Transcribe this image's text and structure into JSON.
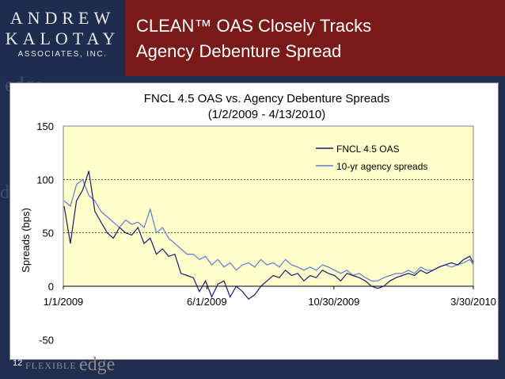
{
  "logo": {
    "line1": "ANDREW",
    "line2": "KALOTAY",
    "line3": "ASSOCIATES, INC."
  },
  "slide": {
    "title_line1": "CLEAN™ OAS Closely Tracks",
    "title_line2": "Agency Debenture Spread",
    "page_number": "12",
    "footer_word": "edge",
    "footer_small": "FLEXIBLE"
  },
  "colors": {
    "plot_bg": "#ffffcc",
    "oas": "#1a1a6e",
    "spread": "#5a7bd8"
  },
  "chart_data": {
    "type": "line",
    "title": "FNCL 4.5 OAS vs. Agency Debenture Spreads",
    "subtitle": "(1/2/2009  - 4/13/2010)",
    "ylabel": "Spreads (bps)",
    "ylim": [
      -50,
      150
    ],
    "yticks": [
      "-50",
      "0",
      "50",
      "100",
      "150"
    ],
    "xticks": [
      "1/1/2009",
      "6/1/2009",
      "10/30/2009",
      "3/30/2010"
    ],
    "xlim": [
      "2009-01-01",
      "2010-04-13"
    ],
    "grid": "horizontal",
    "legend": "top-right",
    "series": [
      {
        "name": "FNCL 4.5 OAS",
        "x": [
          "2009-01-02",
          "2009-01-09",
          "2009-01-16",
          "2009-01-23",
          "2009-01-30",
          "2009-02-06",
          "2009-02-13",
          "2009-02-20",
          "2009-02-27",
          "2009-03-06",
          "2009-03-13",
          "2009-03-20",
          "2009-03-27",
          "2009-04-03",
          "2009-04-10",
          "2009-04-17",
          "2009-04-24",
          "2009-05-01",
          "2009-05-08",
          "2009-05-15",
          "2009-05-22",
          "2009-05-29",
          "2009-06-05",
          "2009-06-12",
          "2009-06-19",
          "2009-06-26",
          "2009-07-03",
          "2009-07-10",
          "2009-07-17",
          "2009-07-24",
          "2009-07-31",
          "2009-08-07",
          "2009-08-14",
          "2009-08-21",
          "2009-08-28",
          "2009-09-04",
          "2009-09-11",
          "2009-09-18",
          "2009-09-25",
          "2009-10-02",
          "2009-10-09",
          "2009-10-16",
          "2009-10-23",
          "2009-10-30",
          "2009-11-06",
          "2009-11-13",
          "2009-11-20",
          "2009-11-27",
          "2009-12-04",
          "2009-12-11",
          "2009-12-18",
          "2009-12-25",
          "2010-01-01",
          "2010-01-08",
          "2010-01-15",
          "2010-01-22",
          "2010-01-29",
          "2010-02-05",
          "2010-02-12",
          "2010-02-19",
          "2010-02-26",
          "2010-03-05",
          "2010-03-12",
          "2010-03-19",
          "2010-03-26",
          "2010-04-02",
          "2010-04-09",
          "2010-04-13"
        ],
        "values": [
          75,
          40,
          80,
          90,
          108,
          70,
          60,
          50,
          45,
          55,
          50,
          48,
          55,
          40,
          45,
          30,
          35,
          28,
          30,
          12,
          10,
          8,
          -5,
          5,
          -10,
          2,
          5,
          -10,
          0,
          -5,
          -12,
          -8,
          0,
          5,
          10,
          8,
          15,
          10,
          12,
          5,
          10,
          8,
          15,
          12,
          10,
          5,
          12,
          10,
          8,
          5,
          0,
          -2,
          0,
          5,
          8,
          10,
          12,
          10,
          15,
          12,
          15,
          18,
          20,
          22,
          20,
          25,
          28,
          22
        ]
      },
      {
        "name": "10-yr agency spreads",
        "x": [
          "2009-01-02",
          "2009-01-09",
          "2009-01-16",
          "2009-01-23",
          "2009-01-30",
          "2009-02-06",
          "2009-02-13",
          "2009-02-20",
          "2009-02-27",
          "2009-03-06",
          "2009-03-13",
          "2009-03-20",
          "2009-03-27",
          "2009-04-03",
          "2009-04-10",
          "2009-04-17",
          "2009-04-24",
          "2009-05-01",
          "2009-05-08",
          "2009-05-15",
          "2009-05-22",
          "2009-05-29",
          "2009-06-05",
          "2009-06-12",
          "2009-06-19",
          "2009-06-26",
          "2009-07-03",
          "2009-07-10",
          "2009-07-17",
          "2009-07-24",
          "2009-07-31",
          "2009-08-07",
          "2009-08-14",
          "2009-08-21",
          "2009-08-28",
          "2009-09-04",
          "2009-09-11",
          "2009-09-18",
          "2009-09-25",
          "2009-10-02",
          "2009-10-09",
          "2009-10-16",
          "2009-10-23",
          "2009-10-30",
          "2009-11-06",
          "2009-11-13",
          "2009-11-20",
          "2009-11-27",
          "2009-12-04",
          "2009-12-11",
          "2009-12-18",
          "2009-12-25",
          "2010-01-01",
          "2010-01-08",
          "2010-01-15",
          "2010-01-22",
          "2010-01-29",
          "2010-02-05",
          "2010-02-12",
          "2010-02-19",
          "2010-02-26",
          "2010-03-05",
          "2010-03-12",
          "2010-03-19",
          "2010-03-26",
          "2010-04-02",
          "2010-04-09",
          "2010-04-13"
        ],
        "values": [
          80,
          75,
          95,
          100,
          85,
          80,
          70,
          65,
          60,
          55,
          62,
          58,
          60,
          55,
          72,
          50,
          55,
          45,
          40,
          35,
          30,
          30,
          25,
          28,
          20,
          25,
          18,
          22,
          15,
          20,
          22,
          18,
          25,
          20,
          22,
          18,
          25,
          20,
          18,
          15,
          18,
          15,
          20,
          18,
          15,
          12,
          15,
          10,
          12,
          8,
          5,
          5,
          8,
          10,
          12,
          12,
          15,
          12,
          18,
          15,
          15,
          18,
          20,
          18,
          20,
          22,
          25,
          20
        ]
      }
    ]
  }
}
